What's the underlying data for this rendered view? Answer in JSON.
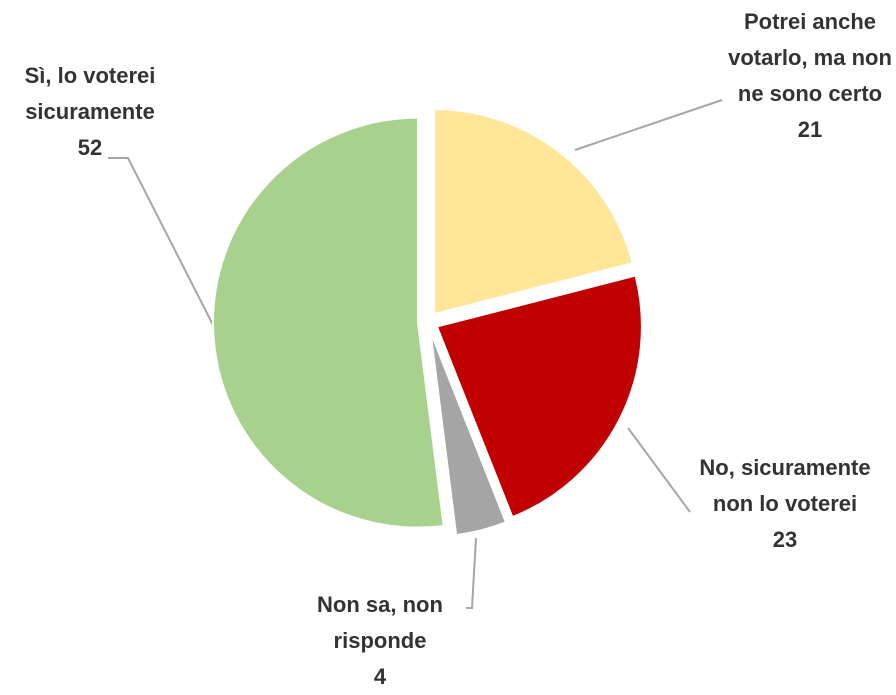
{
  "chart_data": {
    "type": "pie",
    "categories": [
      "Potrei anche votarlo, ma non ne sono certo",
      "No, sicuramente non lo voterei",
      "Non sa, non risponde",
      "Sì, lo voterei sicuramente"
    ],
    "values": [
      21,
      23,
      4,
      52
    ],
    "colors": [
      "#ffe699",
      "#c00000",
      "#a5a5a5",
      "#a9d18e"
    ]
  }
}
